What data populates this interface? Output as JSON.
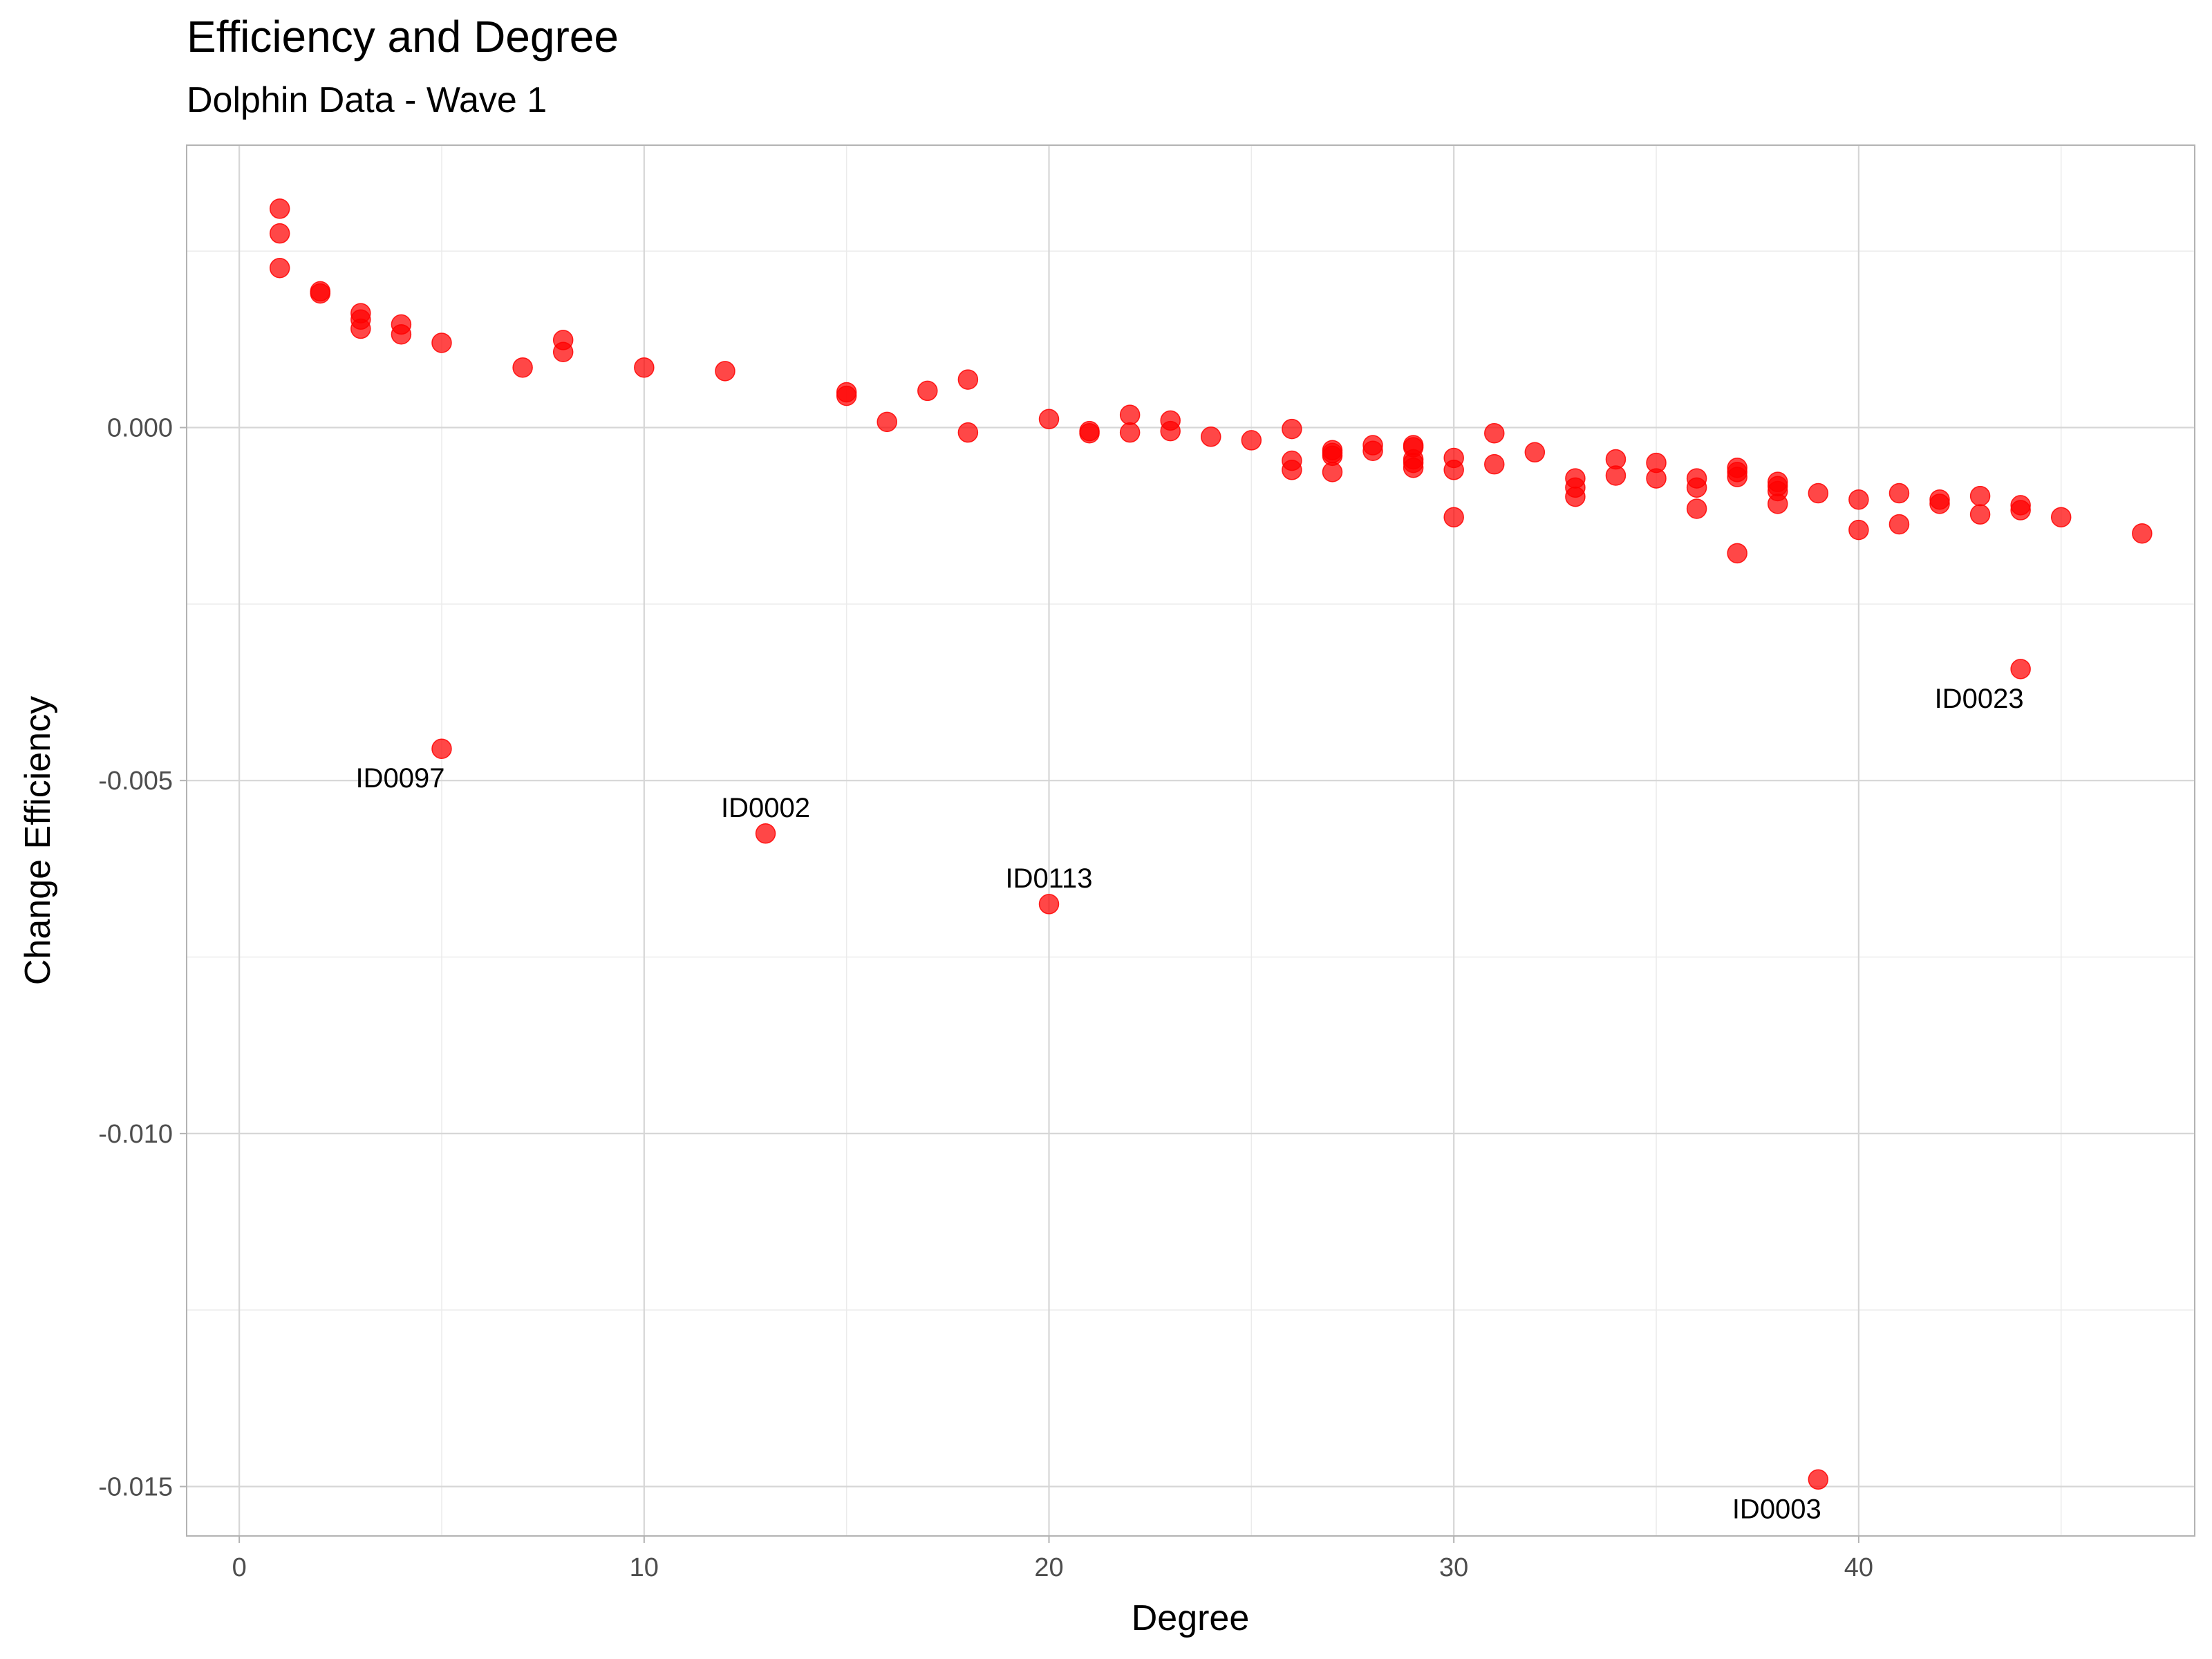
{
  "chart_data": {
    "type": "scatter",
    "title": "Efficiency and Degree",
    "subtitle": "Dolphin Data - Wave 1",
    "xlabel": "Degree",
    "ylabel": "Change Efficiency",
    "xlim": [
      -1.3,
      48.3
    ],
    "ylim": [
      -0.0157,
      0.004
    ],
    "xticks": [
      0,
      10,
      20,
      30,
      40
    ],
    "xtick_labels": [
      "0",
      "10",
      "20",
      "30",
      "40"
    ],
    "yticks": [
      -0.015,
      -0.01,
      -0.005,
      0.0
    ],
    "ytick_labels": [
      "-0.015",
      "-0.010",
      "-0.005",
      "0.000"
    ],
    "grid": true,
    "point_color": "#ff0000",
    "points": [
      {
        "x": 1,
        "y": 0.0031
      },
      {
        "x": 1,
        "y": 0.00275
      },
      {
        "x": 1,
        "y": 0.00226
      },
      {
        "x": 2,
        "y": 0.00193
      },
      {
        "x": 2,
        "y": 0.0019
      },
      {
        "x": 3,
        "y": 0.00162
      },
      {
        "x": 3,
        "y": 0.00153
      },
      {
        "x": 3,
        "y": 0.0014
      },
      {
        "x": 4,
        "y": 0.00146
      },
      {
        "x": 4,
        "y": 0.00132
      },
      {
        "x": 5,
        "y": 0.0012
      },
      {
        "x": 7,
        "y": 0.00085
      },
      {
        "x": 8,
        "y": 0.00124
      },
      {
        "x": 8,
        "y": 0.00107
      },
      {
        "x": 10,
        "y": 0.00085
      },
      {
        "x": 12,
        "y": 0.0008
      },
      {
        "x": 15,
        "y": 0.0005
      },
      {
        "x": 15,
        "y": 0.00045
      },
      {
        "x": 16,
        "y": 8e-05
      },
      {
        "x": 17,
        "y": 0.00052
      },
      {
        "x": 18,
        "y": 0.00068
      },
      {
        "x": 18,
        "y": -7e-05
      },
      {
        "x": 20,
        "y": 0.00012
      },
      {
        "x": 21,
        "y": -5e-05
      },
      {
        "x": 21,
        "y": -8e-05
      },
      {
        "x": 22,
        "y": 0.00018
      },
      {
        "x": 22,
        "y": -7e-05
      },
      {
        "x": 23,
        "y": 0.0001
      },
      {
        "x": 23,
        "y": -5e-05
      },
      {
        "x": 24,
        "y": -0.00013
      },
      {
        "x": 25,
        "y": -0.00018
      },
      {
        "x": 26,
        "y": -2e-05
      },
      {
        "x": 26,
        "y": -0.00047
      },
      {
        "x": 26,
        "y": -0.0006
      },
      {
        "x": 27,
        "y": -0.00032
      },
      {
        "x": 27,
        "y": -0.00036
      },
      {
        "x": 27,
        "y": -0.0004
      },
      {
        "x": 27,
        "y": -0.00063
      },
      {
        "x": 28,
        "y": -0.00025
      },
      {
        "x": 28,
        "y": -0.00033
      },
      {
        "x": 29,
        "y": -0.00025
      },
      {
        "x": 29,
        "y": -0.00028
      },
      {
        "x": 29,
        "y": -0.00045
      },
      {
        "x": 29,
        "y": -0.0005
      },
      {
        "x": 29,
        "y": -0.00057
      },
      {
        "x": 30,
        "y": -0.00043
      },
      {
        "x": 30,
        "y": -0.0006
      },
      {
        "x": 30,
        "y": -0.00127
      },
      {
        "x": 31,
        "y": -8e-05
      },
      {
        "x": 31,
        "y": -0.00052
      },
      {
        "x": 32,
        "y": -0.00035
      },
      {
        "x": 33,
        "y": -0.00072
      },
      {
        "x": 33,
        "y": -0.00085
      },
      {
        "x": 33,
        "y": -0.00098
      },
      {
        "x": 34,
        "y": -0.00045
      },
      {
        "x": 34,
        "y": -0.00068
      },
      {
        "x": 35,
        "y": -0.0005
      },
      {
        "x": 35,
        "y": -0.00072
      },
      {
        "x": 36,
        "y": -0.00072
      },
      {
        "x": 36,
        "y": -0.00085
      },
      {
        "x": 36,
        "y": -0.00115
      },
      {
        "x": 37,
        "y": -0.00057
      },
      {
        "x": 37,
        "y": -0.00063
      },
      {
        "x": 37,
        "y": -0.0007
      },
      {
        "x": 37,
        "y": -0.00178
      },
      {
        "x": 38,
        "y": -0.00077
      },
      {
        "x": 38,
        "y": -0.00083
      },
      {
        "x": 38,
        "y": -0.0009
      },
      {
        "x": 38,
        "y": -0.00108
      },
      {
        "x": 39,
        "y": -0.00093
      },
      {
        "x": 40,
        "y": -0.00102
      },
      {
        "x": 40,
        "y": -0.00145
      },
      {
        "x": 41,
        "y": -0.00093
      },
      {
        "x": 41,
        "y": -0.00137
      },
      {
        "x": 42,
        "y": -0.00102
      },
      {
        "x": 42,
        "y": -0.00108
      },
      {
        "x": 43,
        "y": -0.00097
      },
      {
        "x": 43,
        "y": -0.00123
      },
      {
        "x": 44,
        "y": -0.0011
      },
      {
        "x": 44,
        "y": -0.00117
      },
      {
        "x": 45,
        "y": -0.00127
      },
      {
        "x": 47,
        "y": -0.0015
      },
      {
        "x": 5,
        "y": -0.00455,
        "label": "ID0097",
        "label_pos": "below-left"
      },
      {
        "x": 13,
        "y": -0.00575,
        "label": "ID0002",
        "label_pos": "above"
      },
      {
        "x": 20,
        "y": -0.00675,
        "label": "ID0113",
        "label_pos": "above"
      },
      {
        "x": 44,
        "y": -0.00342,
        "label": "ID0023",
        "label_pos": "below-left"
      },
      {
        "x": 39,
        "y": -0.0149,
        "label": "ID0003",
        "label_pos": "below-left"
      }
    ]
  }
}
